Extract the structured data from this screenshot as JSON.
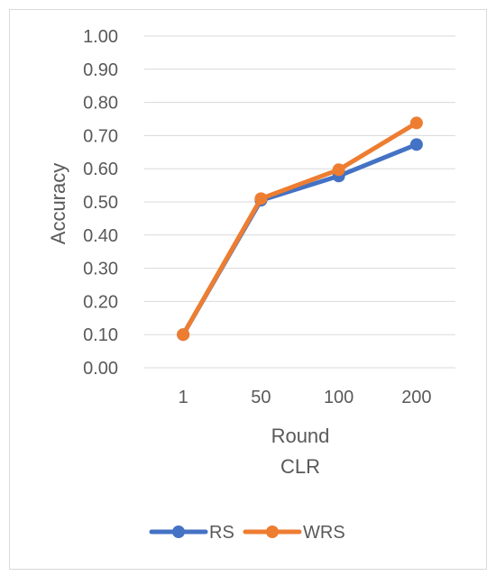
{
  "chart_data": {
    "type": "line",
    "title": "",
    "xlabel": "Round",
    "xlabel_sub": "CLR",
    "ylabel": "Accuracy",
    "categories": [
      "1",
      "50",
      "100",
      "200"
    ],
    "ylim": [
      0,
      1
    ],
    "yticks": [
      "0.00",
      "0.10",
      "0.20",
      "0.30",
      "0.40",
      "0.50",
      "0.60",
      "0.70",
      "0.80",
      "0.90",
      "1.00"
    ],
    "grid": true,
    "legend_position": "bottom",
    "series": [
      {
        "name": "RS",
        "color": "#4472C4",
        "values": [
          0.1,
          0.505,
          0.578,
          0.673
        ]
      },
      {
        "name": "WRS",
        "color": "#ED7D31",
        "values": [
          0.1,
          0.51,
          0.597,
          0.738
        ]
      }
    ]
  }
}
